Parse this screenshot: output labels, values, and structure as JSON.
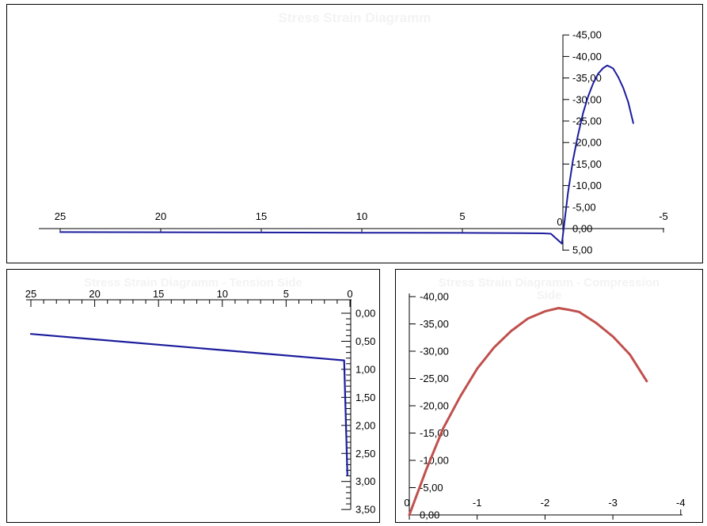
{
  "window": {
    "background": "#ffffff"
  },
  "colors": {
    "series_navy": "#1c1c9e",
    "series_red": "#c0504d",
    "axis": "#000000",
    "panel_border": "#000000",
    "ghost_title": "#f3f3f3"
  },
  "chart_data": [
    {
      "id": "top-full-diagram",
      "type": "line",
      "title": "Stress Strain Diagramm",
      "legend": "none",
      "grid": false,
      "x_axis": {
        "side": "bottom",
        "labels_position": "above-line",
        "direction": "values-decrease-to-right",
        "range": [
          26.5,
          -5
        ],
        "values": [
          25,
          20,
          15,
          10,
          5,
          0,
          -5
        ],
        "labels": [
          "25",
          "20",
          "15",
          "10",
          "5",
          "0",
          "-5"
        ]
      },
      "y_axis": {
        "side": "right-of-axis-at-x0",
        "direction": "negative-up",
        "range": [
          -45,
          5
        ],
        "values": [
          -45,
          -40,
          -35,
          -30,
          -25,
          -20,
          -15,
          -10,
          -5,
          0,
          5
        ],
        "labels": [
          "-45,00",
          "-40,00",
          "-35,00",
          "-30,00",
          "-25,00",
          "-20,00",
          "-15,00",
          "-10,00",
          "-5,00",
          "0,00",
          "5,00"
        ]
      },
      "series": [
        {
          "name": "navy-curve",
          "color": "#1c1c9e",
          "points": [
            [
              25,
              0.8
            ],
            [
              20,
              0.85
            ],
            [
              15,
              0.9
            ],
            [
              10,
              0.95
            ],
            [
              5,
              1.0
            ],
            [
              2,
              1.05
            ],
            [
              1,
              1.1
            ],
            [
              0.6,
              1.2
            ],
            [
              0.05,
              3.5
            ],
            [
              -0.25,
              -8.3
            ],
            [
              -0.5,
              -15.9
            ],
            [
              -0.75,
              -21.7
            ],
            [
              -1,
              -26.8
            ],
            [
              -1.25,
              -30.7
            ],
            [
              -1.5,
              -33.7
            ],
            [
              -1.75,
              -36.0
            ],
            [
              -2,
              -37.3
            ],
            [
              -2.2,
              -37.9
            ],
            [
              -2.35,
              -37.6
            ],
            [
              -2.5,
              -37.2
            ],
            [
              -2.75,
              -35.2
            ],
            [
              -3,
              -32.7
            ],
            [
              -3.25,
              -29.4
            ],
            [
              -3.5,
              -24.5
            ]
          ]
        }
      ]
    },
    {
      "id": "tension-side-diagram",
      "type": "line",
      "title": "Stress Strain Diagramm - Tension Side",
      "legend": "none",
      "grid": false,
      "x_axis": {
        "side": "top",
        "labels_position": "above-line",
        "direction": "values-decrease-to-right",
        "range": [
          26,
          0
        ],
        "minor_step": 1,
        "values": [
          25,
          20,
          15,
          10,
          5,
          0
        ],
        "labels": [
          "25",
          "20",
          "15",
          "10",
          "5",
          "0"
        ]
      },
      "y_axis": {
        "side": "right",
        "direction": "positive-down",
        "range": [
          0,
          3.5
        ],
        "minor_step": 0.1,
        "values": [
          0,
          0.5,
          1,
          1.5,
          2,
          2.5,
          3,
          3.5
        ],
        "labels": [
          "0,00",
          "0,50",
          "1,00",
          "1,50",
          "2,00",
          "2,50",
          "3,00",
          "3,50"
        ]
      },
      "series": [
        {
          "name": "navy-curve",
          "color": "#1c1c9e",
          "points": [
            [
              25,
              0.37
            ],
            [
              0.45,
              0.84
            ],
            [
              0.2,
              2.89
            ]
          ]
        }
      ]
    },
    {
      "id": "compression-side-diagram",
      "type": "line",
      "title": "Stress Strain Diagramm - Compression Side",
      "legend": "none",
      "grid": false,
      "x_axis": {
        "side": "bottom",
        "labels_position": "above-line",
        "direction": "values-decrease-to-right",
        "range": [
          0,
          -4
        ],
        "values": [
          0,
          -1,
          -2,
          -3,
          -4
        ],
        "labels": [
          "0",
          "-1",
          "-2",
          "-3",
          "-4"
        ]
      },
      "y_axis": {
        "side": "left",
        "direction": "negative-up",
        "range": [
          -40,
          0
        ],
        "values": [
          -40,
          -35,
          -30,
          -25,
          -20,
          -15,
          -10,
          -5,
          0
        ],
        "labels": [
          "-40,00",
          "-35,00",
          "-30,00",
          "-25,00",
          "-20,00",
          "-15,00",
          "-10,00",
          "-5,00",
          "0,00"
        ]
      },
      "series": [
        {
          "name": "red-curve",
          "color": "#c0504d",
          "points": [
            [
              0,
              0
            ],
            [
              -0.25,
              -8.3
            ],
            [
              -0.5,
              -15.9
            ],
            [
              -0.75,
              -21.7
            ],
            [
              -1,
              -26.8
            ],
            [
              -1.25,
              -30.7
            ],
            [
              -1.5,
              -33.7
            ],
            [
              -1.75,
              -36.0
            ],
            [
              -2,
              -37.3
            ],
            [
              -2.2,
              -37.9
            ],
            [
              -2.35,
              -37.6
            ],
            [
              -2.5,
              -37.2
            ],
            [
              -2.75,
              -35.2
            ],
            [
              -3,
              -32.7
            ],
            [
              -3.25,
              -29.4
            ],
            [
              -3.5,
              -24.5
            ]
          ]
        }
      ]
    }
  ]
}
